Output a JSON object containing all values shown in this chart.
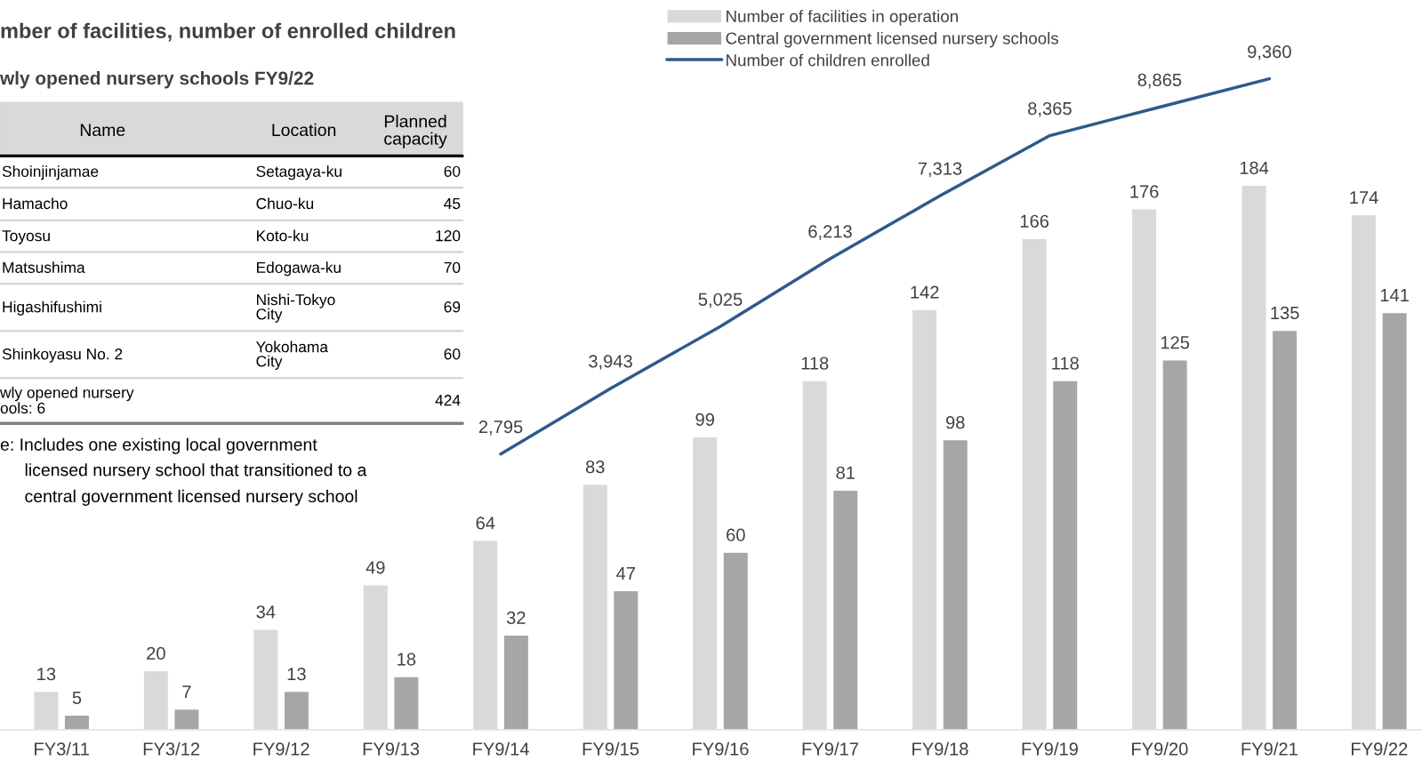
{
  "chart_data": {
    "type": "bar",
    "title": "mber of facilities, number of enrolled children",
    "subtitle": "wly opened nursery schools FY9/22",
    "categories": [
      "FY3/11",
      "FY3/12",
      "FY9/12",
      "FY9/13",
      "FY9/14",
      "FY9/15",
      "FY9/16",
      "FY9/17",
      "FY9/18",
      "FY9/19",
      "FY9/20",
      "FY9/21",
      "FY9/22"
    ],
    "series": [
      {
        "name": "Number of facilities in operation",
        "color": "#d9d9d9",
        "values": [
          13,
          20,
          34,
          49,
          64,
          83,
          99,
          118,
          142,
          166,
          176,
          184,
          174
        ]
      },
      {
        "name": "Central government licensed nursery schools",
        "color": "#a6a6a6",
        "values": [
          5,
          7,
          13,
          18,
          32,
          47,
          60,
          81,
          98,
          118,
          125,
          135,
          141
        ]
      },
      {
        "name": "Number of children enrolled",
        "type": "line",
        "axis": "y2",
        "color": "#2f5a8a",
        "values": [
          null,
          null,
          null,
          null,
          2795,
          3943,
          5025,
          6213,
          7313,
          8365,
          8865,
          9360,
          null
        ],
        "value_labels": [
          null,
          null,
          null,
          null,
          "2,795",
          "3,943",
          "5,025",
          "6,213",
          "7,313",
          "8,365",
          "8,865",
          "9,360",
          null
        ]
      }
    ],
    "data_labels": true,
    "legend": "top",
    "annotations": [
      "Name",
      "Location",
      "Planned\ncapacity",
      "Shoinjinjamae",
      "Setagaya-ku",
      "60",
      "Hamacho",
      "Chuo-ku",
      "45",
      "Toyosu",
      "Koto-ku",
      "120",
      "Matsushima",
      "Edogawa-ku",
      "70",
      "Higashifushimi",
      "Nishi-Tokyo\nCity",
      "69",
      "Shinkoyasu No. 2",
      "Yokohama\nCity",
      "60",
      "wly opened nursery\nools: 6",
      "424",
      "e: Includes one existing local government\nlicensed nursery school that transitioned to a\ncentral government licensed nursery school"
    ]
  }
}
